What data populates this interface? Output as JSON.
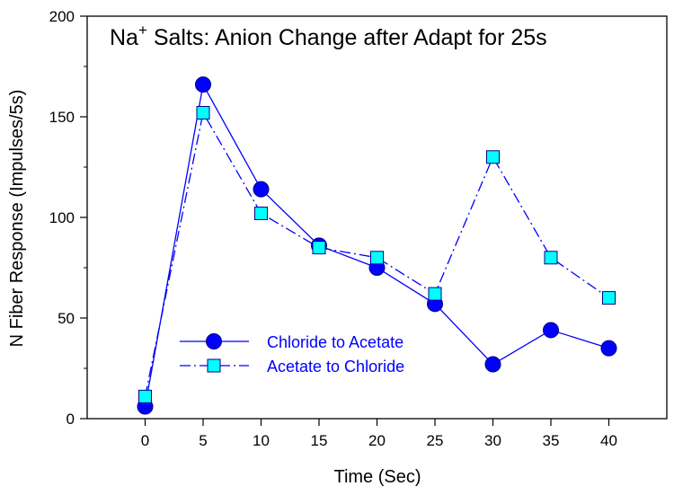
{
  "chart_data": {
    "type": "line",
    "title_main": "Na",
    "title_sup": "+",
    "title_rest": " Salts: Anion Change after Adapt for 25s",
    "xlabel": "Time (Sec)",
    "ylabel": "N Fiber Response (Impulses/5s)",
    "x": [
      0,
      5,
      10,
      15,
      20,
      25,
      30,
      35,
      40
    ],
    "xticks": [
      "0",
      "5",
      "10",
      "15",
      "20",
      "25",
      "30",
      "35",
      "40"
    ],
    "yticks": [
      "0",
      "50",
      "100",
      "150",
      "200"
    ],
    "xlim": [
      -5,
      45
    ],
    "ylim": [
      0,
      200
    ],
    "grid": false,
    "legend_position": "lower-left",
    "series": [
      {
        "name": "Chloride to Acetate",
        "values": [
          6,
          166,
          114,
          86,
          75,
          57,
          27,
          44,
          35
        ],
        "marker": "circle",
        "line_style": "solid",
        "marker_fill": "#0000ff",
        "line_color": "#0000ff"
      },
      {
        "name": "Acetate to Chloride",
        "values": [
          11,
          152,
          102,
          85,
          80,
          62,
          130,
          80,
          60
        ],
        "marker": "square",
        "line_style": "dash-dot",
        "marker_fill": "#00ffff",
        "line_color": "#0000ff"
      }
    ],
    "colors": {
      "axes": "#000000",
      "title": "#000000",
      "legend_text": "#0000ff"
    }
  }
}
